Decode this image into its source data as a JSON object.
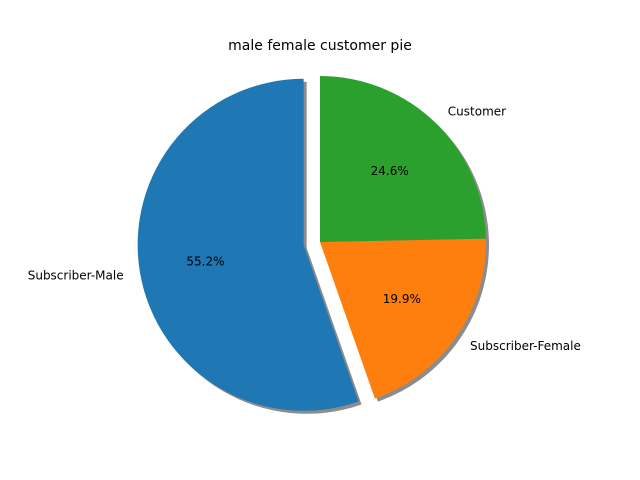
{
  "chart_data": {
    "type": "pie",
    "title": "male female customer pie",
    "slices": [
      {
        "label": "Subscriber-Male",
        "value": 55.2,
        "pct_label": "55.2%",
        "color": "#1f77b4",
        "explode": 0.1
      },
      {
        "label": "Subscriber-Female",
        "value": 19.9,
        "pct_label": "19.9%",
        "color": "#ff7f0e",
        "explode": 0
      },
      {
        "label": "Customer",
        "value": 24.6,
        "pct_label": "24.6%",
        "color": "#2ca02c",
        "explode": 0
      }
    ],
    "start_angle_deg": 90,
    "direction": "counterclockwise",
    "shadow": true,
    "legend": false
  }
}
